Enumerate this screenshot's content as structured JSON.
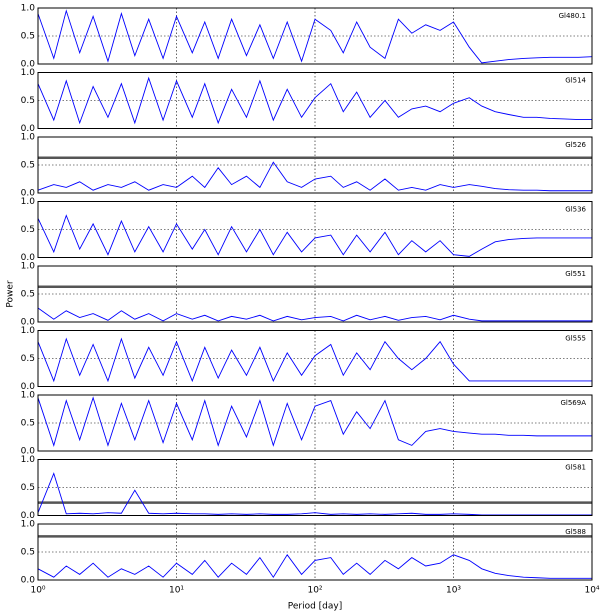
{
  "xlabel": "Period [day]",
  "ylabel": "Power",
  "xlim": [
    1,
    10000
  ],
  "xticks": [
    {
      "value": 1,
      "label": "10⁰"
    },
    {
      "value": 10,
      "label": "10¹"
    },
    {
      "value": 100,
      "label": "10²"
    },
    {
      "value": 1000,
      "label": "10³"
    },
    {
      "value": 10000,
      "label": "10⁴"
    }
  ],
  "x": [
    1,
    1.3,
    1.6,
    2,
    2.5,
    3.2,
    4,
    5,
    6.3,
    8,
    10,
    13,
    16,
    20,
    25,
    32,
    40,
    50,
    63,
    80,
    100,
    130,
    160,
    200,
    250,
    320,
    400,
    500,
    630,
    800,
    1000,
    1300,
    1600,
    2000,
    2500,
    3200,
    4000,
    5000,
    6300,
    8000,
    10000
  ],
  "chart_data": [
    {
      "type": "line",
      "label": "Gl480.1",
      "ylim": [
        0,
        1
      ],
      "yticks": [
        {
          "value": 0,
          "label": "0.0"
        },
        {
          "value": 0.5,
          "label": "0.5"
        },
        {
          "value": 1,
          "label": "1.0"
        }
      ],
      "series": [
        {
          "color": "#0000ff",
          "values": [
            0.9,
            0.1,
            0.95,
            0.2,
            0.85,
            0.05,
            0.9,
            0.15,
            0.8,
            0.1,
            0.85,
            0.2,
            0.75,
            0.1,
            0.8,
            0.15,
            0.7,
            0.1,
            0.75,
            0.05,
            0.8,
            0.6,
            0.2,
            0.75,
            0.3,
            0.1,
            0.8,
            0.55,
            0.7,
            0.6,
            0.75,
            0.3,
            0.02,
            0.05,
            0.08,
            0.1,
            0.11,
            0.12,
            0.12,
            0.12,
            0.13
          ]
        }
      ]
    },
    {
      "type": "line",
      "label": "Gl514",
      "ylim": [
        0,
        1
      ],
      "yticks": [
        {
          "value": 0,
          "label": "0.0"
        },
        {
          "value": 0.5,
          "label": "0.5"
        },
        {
          "value": 1,
          "label": "1.0"
        }
      ],
      "series": [
        {
          "color": "#0000ff",
          "values": [
            0.8,
            0.15,
            0.85,
            0.1,
            0.75,
            0.2,
            0.8,
            0.1,
            0.9,
            0.15,
            0.85,
            0.2,
            0.8,
            0.1,
            0.7,
            0.2,
            0.85,
            0.15,
            0.7,
            0.2,
            0.55,
            0.8,
            0.3,
            0.65,
            0.2,
            0.5,
            0.2,
            0.35,
            0.4,
            0.3,
            0.45,
            0.55,
            0.4,
            0.3,
            0.25,
            0.2,
            0.2,
            0.18,
            0.17,
            0.16,
            0.16
          ]
        }
      ]
    },
    {
      "type": "line",
      "label": "Gl526",
      "ylim": [
        0,
        1
      ],
      "yticks": [
        {
          "value": 0,
          "label": "0.0"
        },
        {
          "value": 0.5,
          "label": "0.5"
        },
        {
          "value": 1,
          "label": "1.0"
        }
      ],
      "hline": 0.63,
      "series": [
        {
          "color": "#0000ff",
          "values": [
            0.05,
            0.15,
            0.1,
            0.2,
            0.05,
            0.15,
            0.1,
            0.2,
            0.05,
            0.15,
            0.1,
            0.3,
            0.1,
            0.45,
            0.15,
            0.3,
            0.1,
            0.55,
            0.2,
            0.1,
            0.25,
            0.3,
            0.1,
            0.2,
            0.05,
            0.25,
            0.05,
            0.1,
            0.05,
            0.15,
            0.1,
            0.15,
            0.12,
            0.08,
            0.06,
            0.05,
            0.05,
            0.04,
            0.04,
            0.04,
            0.04
          ]
        }
      ]
    },
    {
      "type": "line",
      "label": "Gl536",
      "ylim": [
        0,
        1
      ],
      "yticks": [
        {
          "value": 0,
          "label": "0.0"
        },
        {
          "value": 0.5,
          "label": "0.5"
        },
        {
          "value": 1,
          "label": "1.0"
        }
      ],
      "series": [
        {
          "color": "#0000ff",
          "values": [
            0.7,
            0.1,
            0.75,
            0.15,
            0.6,
            0.05,
            0.65,
            0.1,
            0.55,
            0.1,
            0.6,
            0.15,
            0.5,
            0.05,
            0.55,
            0.1,
            0.5,
            0.05,
            0.45,
            0.1,
            0.35,
            0.4,
            0.05,
            0.4,
            0.1,
            0.45,
            0.05,
            0.3,
            0.1,
            0.3,
            0.05,
            0.02,
            0.15,
            0.28,
            0.32,
            0.34,
            0.35,
            0.35,
            0.35,
            0.35,
            0.35
          ]
        }
      ]
    },
    {
      "type": "line",
      "label": "Gl551",
      "ylim": [
        0,
        1
      ],
      "yticks": [
        {
          "value": 0,
          "label": "0.0"
        },
        {
          "value": 0.5,
          "label": "0.5"
        },
        {
          "value": 1,
          "label": "1.0"
        }
      ],
      "hline": 0.63,
      "series": [
        {
          "color": "#0000ff",
          "values": [
            0.25,
            0.05,
            0.2,
            0.08,
            0.15,
            0.03,
            0.2,
            0.05,
            0.15,
            0.02,
            0.15,
            0.05,
            0.12,
            0.02,
            0.1,
            0.05,
            0.12,
            0.02,
            0.1,
            0.04,
            0.08,
            0.1,
            0.02,
            0.12,
            0.04,
            0.1,
            0.03,
            0.08,
            0.1,
            0.04,
            0.12,
            0.05,
            0.02,
            0.02,
            0.02,
            0.02,
            0.02,
            0.02,
            0.02,
            0.02,
            0.02
          ]
        }
      ]
    },
    {
      "type": "line",
      "label": "Gl555",
      "ylim": [
        0,
        1
      ],
      "yticks": [
        {
          "value": 0,
          "label": "0.0"
        },
        {
          "value": 0.5,
          "label": "0.5"
        },
        {
          "value": 1,
          "label": "1.0"
        }
      ],
      "series": [
        {
          "color": "#0000ff",
          "values": [
            0.8,
            0.1,
            0.85,
            0.2,
            0.75,
            0.1,
            0.85,
            0.15,
            0.7,
            0.2,
            0.8,
            0.1,
            0.7,
            0.15,
            0.65,
            0.2,
            0.7,
            0.1,
            0.6,
            0.2,
            0.55,
            0.75,
            0.2,
            0.6,
            0.3,
            0.8,
            0.5,
            0.3,
            0.5,
            0.8,
            0.4,
            0.1,
            0.1,
            0.1,
            0.1,
            0.1,
            0.1,
            0.1,
            0.1,
            0.1,
            0.1
          ]
        }
      ]
    },
    {
      "type": "line",
      "label": "Gl569A",
      "ylim": [
        0,
        1
      ],
      "yticks": [
        {
          "value": 0,
          "label": "0.0"
        },
        {
          "value": 0.5,
          "label": "0.5"
        },
        {
          "value": 1,
          "label": "1.0"
        }
      ],
      "series": [
        {
          "color": "#0000ff",
          "values": [
            0.95,
            0.1,
            0.9,
            0.2,
            0.95,
            0.1,
            0.85,
            0.2,
            0.9,
            0.15,
            0.85,
            0.2,
            0.9,
            0.1,
            0.8,
            0.25,
            0.9,
            0.1,
            0.85,
            0.2,
            0.8,
            0.9,
            0.3,
            0.7,
            0.4,
            0.9,
            0.2,
            0.1,
            0.35,
            0.4,
            0.35,
            0.32,
            0.3,
            0.3,
            0.28,
            0.28,
            0.27,
            0.27,
            0.27,
            0.27,
            0.27
          ]
        }
      ]
    },
    {
      "type": "line",
      "label": "Gl581",
      "ylim": [
        0,
        1
      ],
      "yticks": [
        {
          "value": 0,
          "label": "0.0"
        },
        {
          "value": 0.5,
          "label": "0.5"
        },
        {
          "value": 1,
          "label": "1.0"
        }
      ],
      "hline": 0.23,
      "series": [
        {
          "color": "#0000ff",
          "values": [
            0.05,
            0.75,
            0.03,
            0.04,
            0.03,
            0.05,
            0.04,
            0.45,
            0.04,
            0.03,
            0.04,
            0.03,
            0.03,
            0.02,
            0.03,
            0.02,
            0.03,
            0.02,
            0.02,
            0.03,
            0.05,
            0.02,
            0.03,
            0.02,
            0.03,
            0.02,
            0.03,
            0.04,
            0.02,
            0.02,
            0.03,
            0.02,
            0.01,
            0.01,
            0.01,
            0.01,
            0.01,
            0.01,
            0.01,
            0.01,
            0.01
          ]
        }
      ]
    },
    {
      "type": "line",
      "label": "Gl588",
      "ylim": [
        0,
        1
      ],
      "yticks": [
        {
          "value": 0,
          "label": "0.0"
        },
        {
          "value": 0.5,
          "label": "0.5"
        },
        {
          "value": 1,
          "label": "1.0"
        }
      ],
      "hline": 0.78,
      "series": [
        {
          "color": "#0000ff",
          "values": [
            0.2,
            0.05,
            0.25,
            0.1,
            0.3,
            0.05,
            0.2,
            0.1,
            0.25,
            0.05,
            0.3,
            0.1,
            0.35,
            0.05,
            0.3,
            0.1,
            0.4,
            0.05,
            0.45,
            0.1,
            0.35,
            0.4,
            0.1,
            0.3,
            0.1,
            0.35,
            0.2,
            0.4,
            0.25,
            0.3,
            0.45,
            0.35,
            0.2,
            0.12,
            0.08,
            0.05,
            0.04,
            0.03,
            0.03,
            0.03,
            0.03
          ]
        }
      ]
    }
  ]
}
